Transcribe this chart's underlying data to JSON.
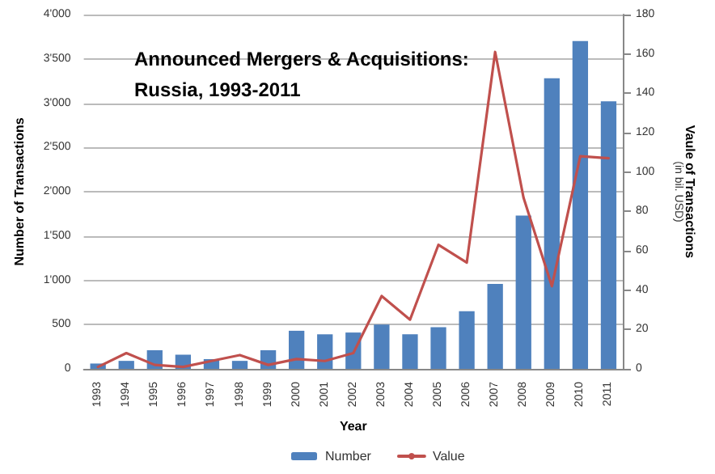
{
  "chart_data": {
    "type": "bar",
    "title": "Announced Mergers & Acquisitions:\nRussia, 1993-2011",
    "xlabel": "Year",
    "ylabel": "Number of Transactions",
    "y2label": "Vaule of Transactions\n(in bil. USD)",
    "categories": [
      "1993",
      "1994",
      "1995",
      "1996",
      "1997",
      "1998",
      "1999",
      "2000",
      "2001",
      "2002",
      "2003",
      "2004",
      "2005",
      "2006",
      "2007",
      "2008",
      "2009",
      "2010",
      "2011"
    ],
    "series": [
      {
        "name": "Number",
        "color": "#4f81bd",
        "values": [
          60,
          90,
          210,
          160,
          110,
          90,
          210,
          430,
          390,
          410,
          500,
          390,
          470,
          650,
          960,
          1730,
          3280,
          3700,
          3020
        ]
      },
      {
        "name": "Value",
        "type": "line",
        "axis": "y2",
        "color": "#c0504d",
        "values": [
          1,
          8,
          2,
          1,
          4,
          7,
          2,
          5,
          4,
          8,
          37,
          25,
          63,
          54,
          161,
          87,
          42,
          108,
          107
        ]
      }
    ],
    "ylim": [
      0,
      4000
    ],
    "yticks": [
      0,
      {
        "value": 500,
        "label": "500"
      },
      {
        "value": 1000,
        "label": "1'000"
      },
      {
        "value": 1500,
        "label": "1'500"
      },
      {
        "value": 2000,
        "label": "2'000"
      },
      {
        "value": 2500,
        "label": "2'500"
      },
      {
        "value": 3000,
        "label": "3'000"
      },
      {
        "value": 3500,
        "label": "3'500"
      },
      {
        "value": 4000,
        "label": "4'000"
      }
    ],
    "y2lim": [
      0,
      180
    ],
    "y2ticks": [
      0,
      20,
      40,
      60,
      80,
      100,
      120,
      140,
      160,
      180
    ],
    "grid": "y",
    "legend": "bottom",
    "marker": "none",
    "line_style": "solid"
  }
}
